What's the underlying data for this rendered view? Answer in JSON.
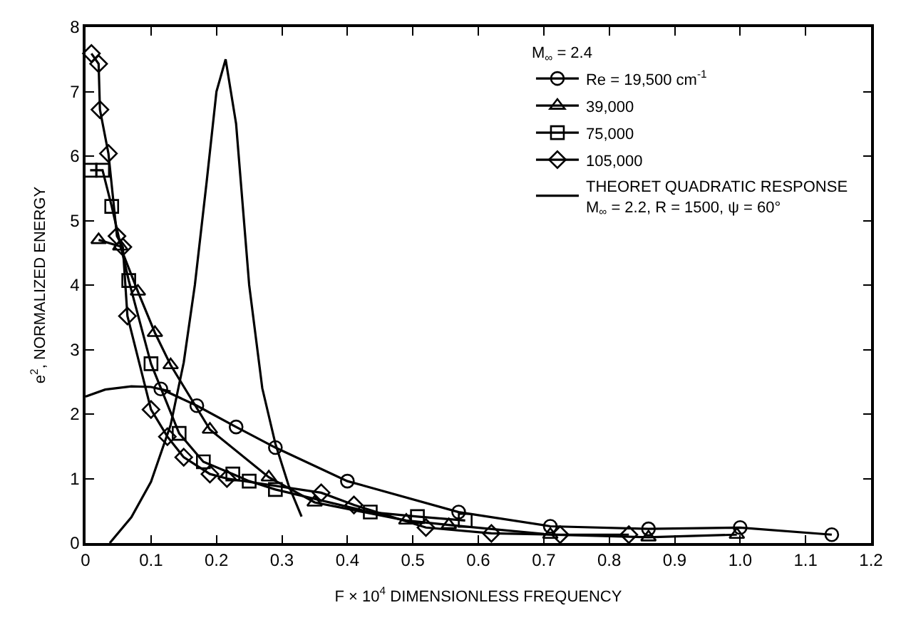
{
  "chart_data": {
    "type": "line",
    "xlabel": "F × 10$^{4}$ DIMENSIONLESS FREQUENCY",
    "ylabel": "e$^{2}$, NORMALIZED ENERGY",
    "legend_title": "M$_{∞}$ = 2.4",
    "xlim": [
      0,
      1.2
    ],
    "xticks": [
      0,
      0.1,
      0.2,
      0.3,
      0.4,
      0.5,
      0.6,
      0.7,
      0.8,
      0.9,
      {
        "value": 1.0,
        "label": "1.0"
      },
      1.1,
      1.2
    ],
    "ylim": [
      0,
      8
    ],
    "yticks": [
      0,
      1,
      2,
      3,
      4,
      5,
      6,
      7,
      8
    ],
    "legend": "top right",
    "series": [
      {
        "name": "Re = 19,500 cm$^{-1}$",
        "marker": "circle",
        "color": "#000000",
        "x": [
          0.115,
          0.17,
          0.23,
          0.29,
          0.4,
          0.57,
          0.71,
          0.86,
          1.0,
          1.14
        ],
        "values": [
          2.39,
          2.13,
          1.8,
          1.48,
          0.96,
          0.48,
          0.26,
          0.22,
          0.24,
          0.13
        ]
      },
      {
        "name": "39,000",
        "marker": "triangle",
        "color": "#000000",
        "x": [
          0.02,
          0.053,
          0.08,
          0.106,
          0.13,
          0.19,
          0.28,
          0.35,
          0.49,
          0.555,
          0.71,
          0.86,
          0.995
        ],
        "values": [
          4.7,
          4.6,
          3.9,
          3.26,
          2.76,
          1.76,
          1.02,
          0.63,
          0.35,
          0.28,
          0.13,
          0.09,
          0.13
        ]
      },
      {
        "name": "75,000",
        "marker": "square",
        "color": "#000000",
        "x": [
          0.007,
          0.026,
          0.04,
          0.066,
          0.1,
          0.143,
          0.18,
          0.225,
          0.25,
          0.29,
          0.435,
          0.507,
          0.58
        ],
        "values": [
          5.78,
          5.78,
          5.22,
          4.07,
          2.78,
          1.7,
          1.26,
          1.07,
          0.96,
          0.83,
          0.48,
          0.41,
          0.35
        ]
      },
      {
        "name": "105,000",
        "marker": "diamond",
        "color": "#000000",
        "x": [
          0.009,
          0.02,
          0.022,
          0.035,
          0.048,
          0.057,
          0.064,
          0.1,
          0.125,
          0.15,
          0.19,
          0.216,
          0.36,
          0.41,
          0.52,
          0.62,
          0.725,
          0.83
        ],
        "values": [
          7.59,
          7.43,
          6.72,
          6.04,
          4.76,
          4.59,
          3.52,
          2.07,
          1.65,
          1.33,
          1.07,
          1.0,
          0.78,
          0.59,
          0.24,
          0.15,
          0.13,
          0.13
        ]
      },
      {
        "name": "THEORET QUADRATIC RESPONSE\nM$_{∞}$ = 2.2, R = 1500, ψ = 60°",
        "marker": "none",
        "color": "#000000",
        "x": [
          0.037,
          0.07,
          0.1,
          0.13,
          0.15,
          0.167,
          0.185,
          0.2,
          0.214,
          0.23,
          0.25,
          0.27,
          0.29,
          0.31,
          0.33
        ],
        "values": [
          0,
          0.4,
          0.95,
          1.83,
          2.8,
          4.0,
          5.6,
          7.0,
          7.5,
          6.5,
          4.0,
          2.4,
          1.54,
          0.9,
          0.41
        ]
      },
      {
        "marker": "none",
        "color": "#000000",
        "x": [
          0,
          0.03,
          0.07,
          0.1,
          0.13
        ],
        "values": [
          2.27,
          2.38,
          2.43,
          2.42,
          2.35
        ]
      }
    ]
  }
}
